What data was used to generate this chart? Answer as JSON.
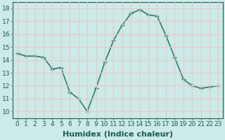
{
  "x": [
    0,
    1,
    2,
    3,
    4,
    5,
    6,
    7,
    8,
    9,
    10,
    11,
    12,
    13,
    14,
    15,
    16,
    17,
    18,
    19,
    20,
    21,
    22,
    23
  ],
  "y": [
    14.5,
    14.3,
    14.3,
    14.2,
    13.3,
    13.4,
    11.5,
    11.0,
    10.0,
    11.8,
    13.8,
    15.5,
    16.7,
    17.6,
    17.9,
    17.5,
    17.4,
    15.9,
    14.2,
    12.5,
    12.0,
    11.8,
    11.9,
    12.0
  ],
  "line_color": "#2e7d6e",
  "marker": "+",
  "marker_size": 4,
  "bg_color": "#cceae7",
  "grid_color": "#e8c8c8",
  "xlabel": "Humidex (Indice chaleur)",
  "xlim": [
    -0.5,
    23.5
  ],
  "ylim": [
    9.5,
    18.5
  ],
  "yticks": [
    10,
    11,
    12,
    13,
    14,
    15,
    16,
    17,
    18
  ],
  "xticks": [
    0,
    1,
    2,
    3,
    4,
    5,
    6,
    7,
    8,
    9,
    10,
    11,
    12,
    13,
    14,
    15,
    16,
    17,
    18,
    19,
    20,
    21,
    22,
    23
  ],
  "tick_fontsize": 6.5,
  "label_fontsize": 8,
  "linewidth": 1.2,
  "marker_linewidth": 1.0
}
